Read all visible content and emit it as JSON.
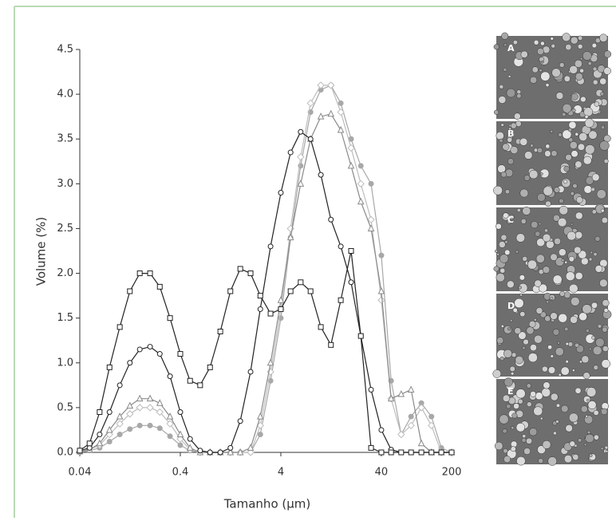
{
  "chart_data": {
    "type": "line",
    "xlabel": "Tamanho (µm)",
    "ylabel": "Volume (%)",
    "log_x": true,
    "xlim": [
      0.04,
      200
    ],
    "xticks": [
      0.04,
      0.4,
      4,
      40,
      200
    ],
    "ylim": [
      0,
      4.5
    ],
    "yticks": [
      {
        "value": 0,
        "label": "0.0"
      },
      0.5,
      {
        "value": 1,
        "label": "1.0"
      },
      1.5,
      {
        "value": 2,
        "label": "2.0"
      },
      2.5,
      {
        "value": 3,
        "label": "3.0"
      },
      3.5,
      {
        "value": 4,
        "label": "4.0"
      },
      4.5
    ],
    "x": [
      0.04,
      0.05,
      0.063,
      0.079,
      0.1,
      0.126,
      0.158,
      0.2,
      0.25,
      0.316,
      0.4,
      0.5,
      0.63,
      0.79,
      1,
      1.26,
      1.58,
      2,
      2.5,
      3.16,
      4,
      5,
      6.3,
      7.9,
      10,
      12.6,
      15.8,
      20,
      25,
      31.6,
      40,
      50,
      63,
      79,
      100,
      126,
      158,
      200
    ],
    "series": [
      {
        "marker": "square",
        "color": "#222222",
        "filled": false,
        "values": [
          0.02,
          0.1,
          0.45,
          0.95,
          1.4,
          1.8,
          2.0,
          2.0,
          1.85,
          1.5,
          1.1,
          0.8,
          0.75,
          0.95,
          1.35,
          1.8,
          2.05,
          2.0,
          1.75,
          1.55,
          1.6,
          1.8,
          1.9,
          1.8,
          1.4,
          1.2,
          1.7,
          2.25,
          1.3,
          0.05,
          0,
          0,
          0,
          0,
          0,
          0,
          0,
          0
        ]
      },
      {
        "marker": "circle",
        "color": "#222222",
        "filled": false,
        "values": [
          0.02,
          0.05,
          0.2,
          0.45,
          0.75,
          1.0,
          1.15,
          1.18,
          1.1,
          0.85,
          0.45,
          0.15,
          0.02,
          0,
          0,
          0.05,
          0.35,
          0.9,
          1.6,
          2.3,
          2.9,
          3.35,
          3.58,
          3.5,
          3.1,
          2.6,
          2.3,
          1.9,
          1.3,
          0.7,
          0.25,
          0.03,
          0,
          0,
          0,
          0,
          0,
          0
        ]
      },
      {
        "marker": "triangle",
        "color": "#8a8a8a",
        "filled": false,
        "values": [
          0.01,
          0.03,
          0.1,
          0.25,
          0.4,
          0.52,
          0.6,
          0.6,
          0.55,
          0.4,
          0.2,
          0.05,
          0,
          0,
          0,
          0,
          0,
          0.05,
          0.4,
          1.0,
          1.7,
          2.4,
          3.0,
          3.5,
          3.75,
          3.78,
          3.6,
          3.2,
          2.8,
          2.5,
          1.8,
          0.6,
          0.65,
          0.7,
          0.1,
          0,
          0,
          0
        ]
      },
      {
        "marker": "diamond",
        "color": "#bdbdbd",
        "filled": false,
        "values": [
          0.01,
          0.03,
          0.08,
          0.2,
          0.32,
          0.43,
          0.5,
          0.5,
          0.45,
          0.32,
          0.15,
          0.03,
          0,
          0,
          0,
          0,
          0,
          0,
          0.3,
          0.9,
          1.6,
          2.5,
          3.3,
          3.9,
          4.1,
          4.1,
          3.8,
          3.4,
          3.0,
          2.6,
          1.7,
          0.6,
          0.2,
          0.3,
          0.5,
          0.3,
          0,
          0
        ]
      },
      {
        "marker": "circle",
        "color": "#a8a8a8",
        "filled": true,
        "values": [
          0,
          0.02,
          0.05,
          0.12,
          0.2,
          0.26,
          0.3,
          0.3,
          0.27,
          0.18,
          0.08,
          0.02,
          0,
          0,
          0,
          0,
          0,
          0,
          0.2,
          0.8,
          1.5,
          2.4,
          3.2,
          3.8,
          4.05,
          4.1,
          3.9,
          3.5,
          3.2,
          3.0,
          2.2,
          0.8,
          0.2,
          0.4,
          0.55,
          0.4,
          0.05,
          0
        ]
      }
    ]
  },
  "images": {
    "labels": [
      "A",
      "B",
      "C",
      "D",
      "E"
    ]
  }
}
